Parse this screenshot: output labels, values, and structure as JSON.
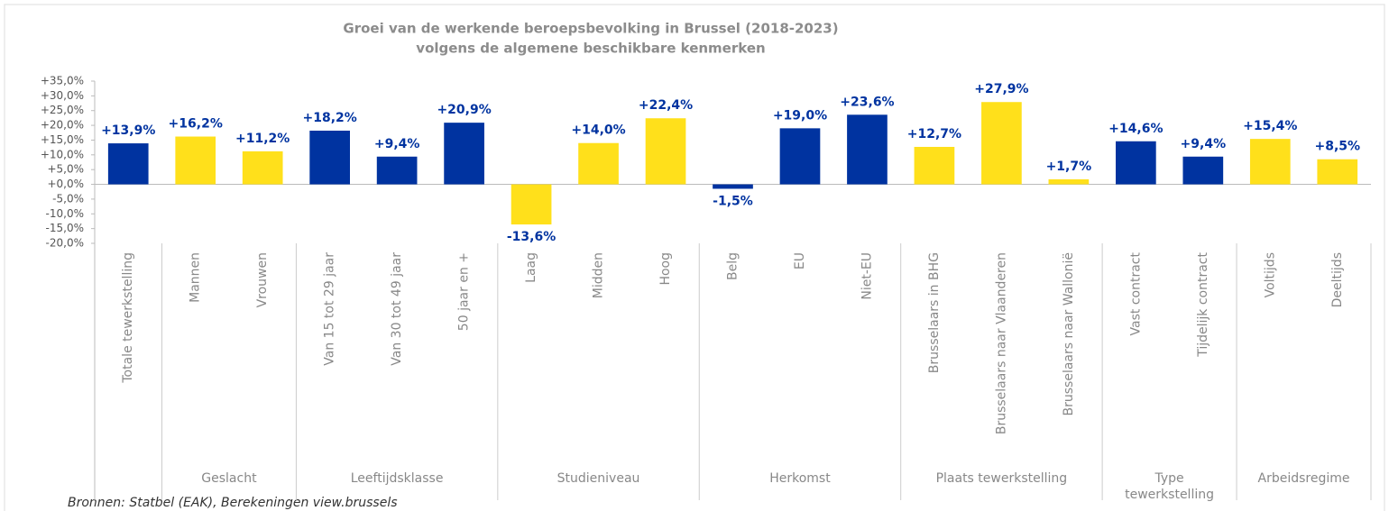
{
  "chart_data": {
    "type": "bar",
    "title": "Groei van de werkende beroepsbevolking in Brussel (2018-2023)",
    "subtitle": "volgens de algemene beschikbare kenmerken",
    "categories": [
      "Totale tewerkstelling",
      "Mannen",
      "Vrouwen",
      "Van 15 tot 29 jaar",
      "Van 30 tot 49 jaar",
      "50 jaar en +",
      "Laag",
      "Midden",
      "Hoog",
      "Belg",
      "EU",
      "Niet-EU",
      "Brusselaars in BHG",
      "Brusselaars naar Vlaanderen",
      "Brusselaars naar Wallonië",
      "Vast contract",
      "Tijdelijk contract",
      "Voltijds",
      "Deeltijds"
    ],
    "groups": [
      null,
      "Geslacht",
      "Geslacht",
      "Leeftijdsklasse",
      "Leeftijdsklasse",
      "Leeftijdsklasse",
      "Studieniveau",
      "Studieniveau",
      "Studieniveau",
      "Herkomst",
      "Herkomst",
      "Herkomst",
      "Plaats tewerkstelling",
      "Plaats tewerkstelling",
      "Plaats tewerkstelling",
      "Type tewerkstelling",
      "Type tewerkstelling",
      "Arbeidsregime",
      "Arbeidsregime"
    ],
    "values": [
      13.9,
      16.2,
      11.2,
      18.2,
      9.4,
      20.9,
      -13.6,
      14.0,
      22.4,
      -1.5,
      19.0,
      23.6,
      12.7,
      27.9,
      1.7,
      14.6,
      9.4,
      15.4,
      8.5
    ],
    "value_labels": [
      "+13,9%",
      "+16,2%",
      "+11,2%",
      "+18,2%",
      "+9,4%",
      "+20,9%",
      "-13,6%",
      "+14,0%",
      "+22,4%",
      "-1,5%",
      "+19,0%",
      "+23,6%",
      "+12,7%",
      "+27,9%",
      "+1,7%",
      "+14,6%",
      "+9,4%",
      "+15,4%",
      "+8,5%"
    ],
    "colors": [
      "#0033a0",
      "#ffe01b",
      "#ffe01b",
      "#0033a0",
      "#0033a0",
      "#0033a0",
      "#ffe01b",
      "#ffe01b",
      "#ffe01b",
      "#0033a0",
      "#0033a0",
      "#0033a0",
      "#ffe01b",
      "#ffe01b",
      "#ffe01b",
      "#0033a0",
      "#0033a0",
      "#ffe01b",
      "#ffe01b"
    ],
    "ylim": [
      -20,
      35
    ],
    "yticks": [
      {
        "value": -20,
        "label": "-20,0%"
      },
      {
        "value": -15,
        "label": "-15,0%"
      },
      {
        "value": -10,
        "label": "-10,0%"
      },
      {
        "value": -5,
        "label": "-5,0%"
      },
      {
        "value": 0,
        "label": "+0,0%"
      },
      {
        "value": 5,
        "label": "+5,0%"
      },
      {
        "value": 10,
        "label": "+10,0%"
      },
      {
        "value": 15,
        "label": "+15,0%"
      },
      {
        "value": 20,
        "label": "+20,0%"
      },
      {
        "value": 25,
        "label": "+25,0%"
      },
      {
        "value": 30,
        "label": "+30,0%"
      },
      {
        "value": 35,
        "label": "+35,0%"
      }
    ],
    "grid": false,
    "source": "Bronnen: Statbel (EAK), Berekeningen view.brussels"
  }
}
